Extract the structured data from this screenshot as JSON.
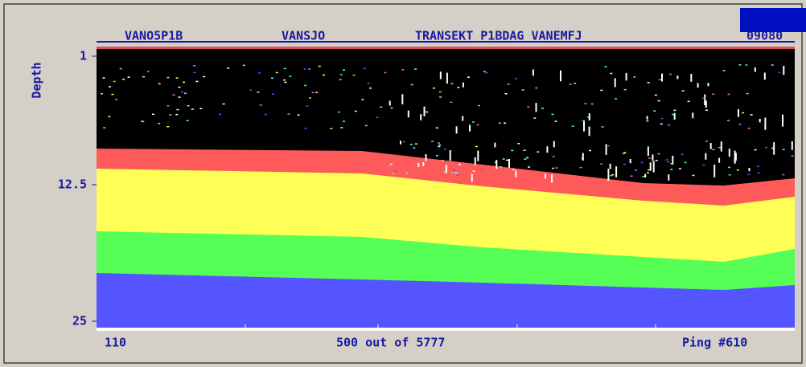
{
  "header": {
    "labels": [
      "VANO5P1B",
      "VANSJO",
      "TRANSEKT P1BDAG VANEMFJ"
    ],
    "corner": "09080"
  },
  "depth_axis": {
    "label": "Depth",
    "ticks": [
      "1",
      "12.5",
      "25"
    ]
  },
  "footer": {
    "start": "110",
    "progress": "500 out of 5777",
    "ping": "Ping #610"
  }
}
